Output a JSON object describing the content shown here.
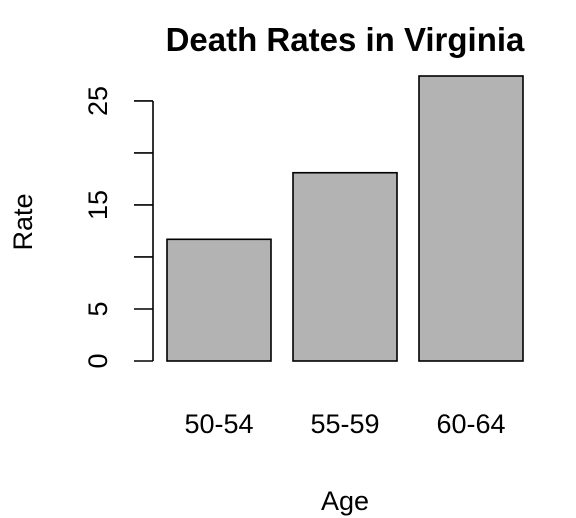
{
  "chart_data": {
    "type": "bar",
    "title": "Death Rates in Virginia",
    "xlabel": "Age",
    "ylabel": "Rate",
    "categories": [
      "50-54",
      "55-59",
      "60-64"
    ],
    "values": [
      11.7,
      18.1,
      27.4
    ],
    "ylim": [
      0,
      27.4
    ],
    "yticks": [
      0,
      5,
      15,
      25
    ],
    "yticks_unlabeled": [
      10,
      20
    ],
    "grid": false,
    "bar_color": "#b3b3b3",
    "edge_color": "#000000"
  }
}
